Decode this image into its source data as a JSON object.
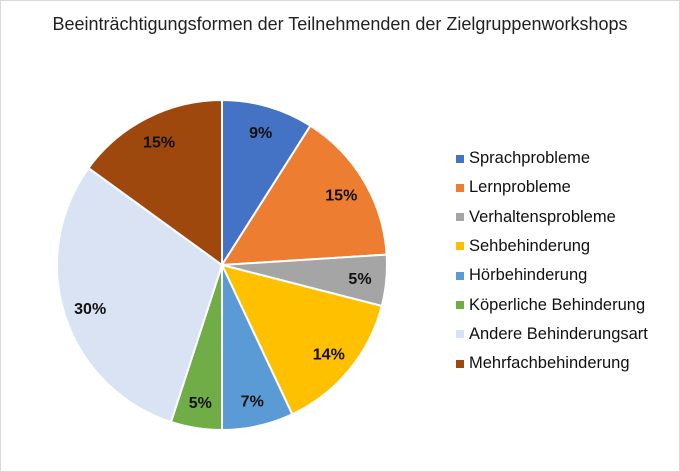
{
  "chart_data": {
    "type": "pie",
    "title": "Beeinträchtigungsformen der Teilnehmenden der Zielgruppenworkshops",
    "categories": [
      "Sprachprobleme",
      "Lernprobleme",
      "Verhaltensprobleme",
      "Sehbehinderung",
      "Hörbehinderung",
      "Köperliche Behinderung",
      "Andere Behinderungsart",
      "Mehrfachbehinderung"
    ],
    "values": [
      9,
      15,
      5,
      14,
      7,
      5,
      30,
      15
    ],
    "data_labels": [
      "9%",
      "15%",
      "5%",
      "14%",
      "7%",
      "5%",
      "30%",
      "15%"
    ],
    "colors": [
      "#4472C4",
      "#ED7D31",
      "#A5A5A5",
      "#FFC000",
      "#5B9BD5",
      "#70AD47",
      "#DAE3F3",
      "#9E480E"
    ],
    "legend_position": "right",
    "start_angle": "top, clockwise"
  }
}
